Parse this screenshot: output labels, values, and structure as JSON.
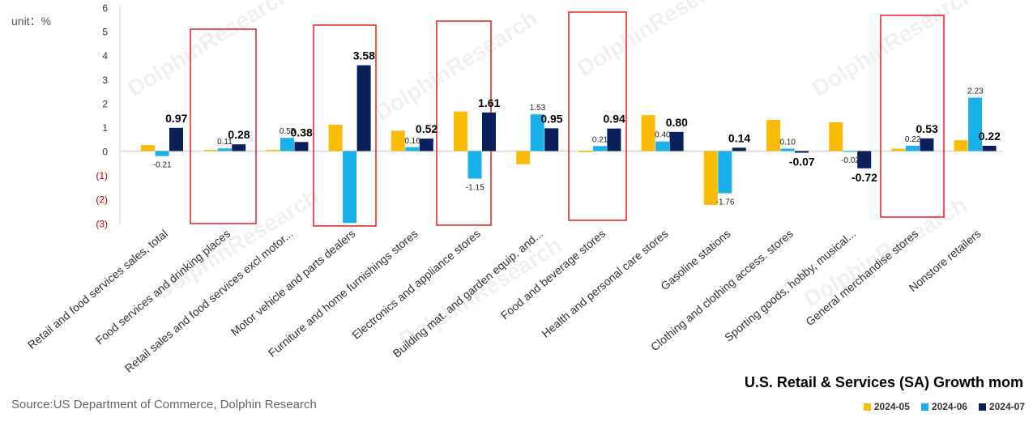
{
  "chart_data": {
    "type": "bar",
    "title": "U.S. Retail & Services (SA) Growth mom",
    "unit_label": "unit：%",
    "source": "Source:US Department of Commerce, Dolphin Research",
    "ylim": [
      -3,
      6
    ],
    "yticks": [
      "6",
      "5",
      "4",
      "3",
      "2",
      "1",
      "0",
      "(1)",
      "(2)",
      "(3)"
    ],
    "categories": [
      "Retail and food services sales, total",
      "Food services and drinking places",
      "Retail sales and food services excl motor...",
      "Motor vehicle and parts dealers",
      "Furniture and home furnishings stores",
      "Electronics and appliance stores",
      "Building mat. and garden equip. and...",
      "Food and beverage stores",
      "Health and personal care stores",
      "Gasoline stations",
      "Clothing and clothing access. stores",
      "Sporting goods, hobby, musical...",
      "General merchandise stores",
      "Nonstore retailers"
    ],
    "series": [
      {
        "name": "2024-05",
        "color": "#FBBC05",
        "values": [
          0.25,
          0.05,
          0.05,
          1.1,
          0.85,
          1.65,
          -0.55,
          -0.05,
          1.5,
          -2.25,
          1.3,
          1.2,
          0.1,
          0.45
        ]
      },
      {
        "name": "2024-06",
        "color": "#1AB0EA",
        "values": [
          -0.21,
          0.11,
          0.55,
          -3.0,
          0.16,
          -1.15,
          1.53,
          0.21,
          0.4,
          -1.76,
          0.1,
          -0.02,
          0.22,
          2.23
        ]
      },
      {
        "name": "2024-07",
        "color": "#0B1F5B",
        "values": [
          0.97,
          0.28,
          0.38,
          3.58,
          0.52,
          1.61,
          0.95,
          0.94,
          0.8,
          0.14,
          -0.07,
          -0.72,
          0.53,
          0.22
        ]
      }
    ],
    "data_labels": {
      "2024-06": [
        "-0.21",
        "0.11",
        "0.55",
        "",
        "0.16",
        "-1.15",
        "1.53",
        "0.21",
        "0.40",
        "-1.76",
        "0.10",
        "-0.02",
        "0.22",
        "2.23"
      ],
      "2024-07": [
        "0.97",
        "0.28",
        "0.38",
        "3.58",
        "0.52",
        "1.61",
        "0.95",
        "0.94",
        "0.80",
        "0.14",
        "-0.07",
        "-0.72",
        "0.53",
        "0.22"
      ]
    },
    "highlighted_categories": [
      1,
      3,
      5,
      7,
      12
    ],
    "highlight_color": "#E02020",
    "watermark": "DolphinResearch",
    "legend_position": "bottom-right"
  }
}
